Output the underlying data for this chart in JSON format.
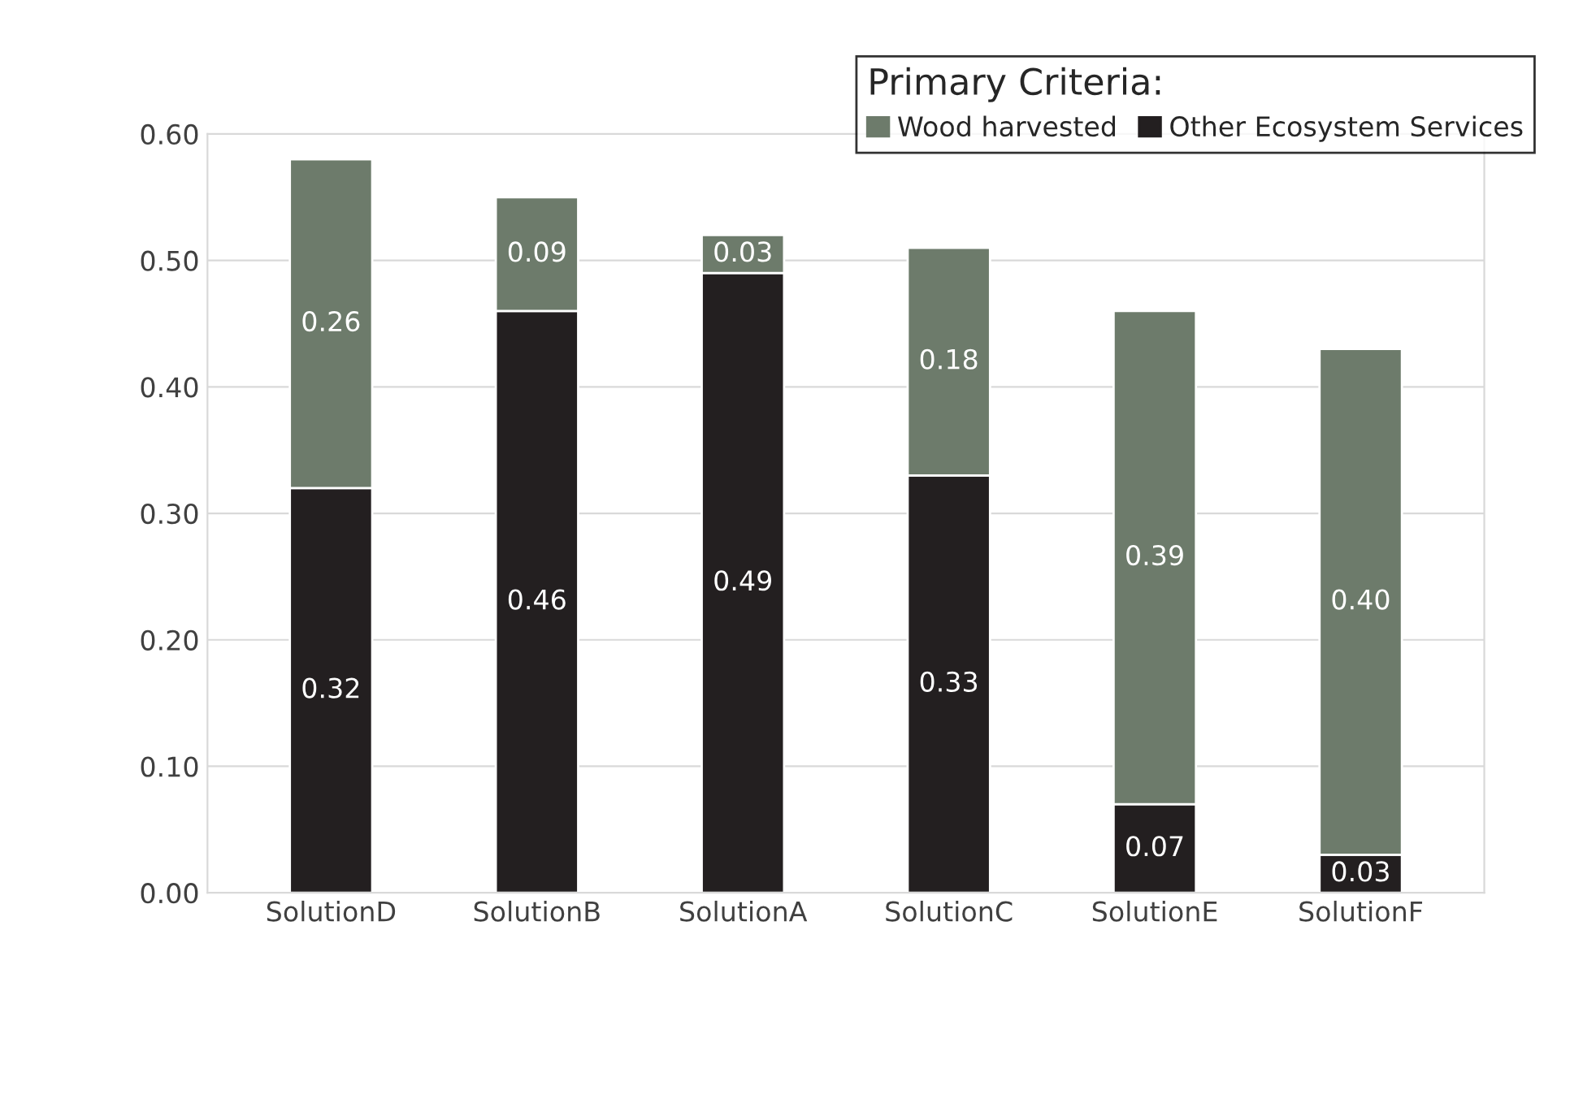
{
  "chart_data": {
    "type": "bar",
    "stacked": true,
    "categories": [
      "SolutionD",
      "SolutionB",
      "SolutionA",
      "SolutionC",
      "SolutionE",
      "SolutionF"
    ],
    "series": [
      {
        "name": "Other Ecosystem Services",
        "color": "#231f20",
        "values": [
          0.32,
          0.46,
          0.49,
          0.33,
          0.07,
          0.03
        ],
        "value_labels": [
          "0.32",
          "0.46",
          "0.49",
          "0.33",
          "0.07",
          "0.03"
        ]
      },
      {
        "name": "Wood harvested",
        "color": "#6d7b6b",
        "values": [
          0.26,
          0.09,
          0.03,
          0.18,
          0.39,
          0.4
        ],
        "value_labels": [
          "0.26",
          "0.09",
          "0.03",
          "0.18",
          "0.39",
          "0.40"
        ]
      }
    ],
    "legend_title": "Primary Criteria:",
    "legend": "top right",
    "ylim": [
      0,
      0.6
    ],
    "yticks": [
      {
        "value": 0,
        "label": "0.00"
      },
      {
        "value": 0.1,
        "label": "0.10"
      },
      {
        "value": 0.2,
        "label": "0.20"
      },
      {
        "value": 0.3,
        "label": "0.30"
      },
      {
        "value": 0.4,
        "label": "0.40"
      },
      {
        "value": 0.5,
        "label": "0.50"
      },
      {
        "value": 0.6,
        "label": "0.60"
      }
    ],
    "grid": "y"
  }
}
